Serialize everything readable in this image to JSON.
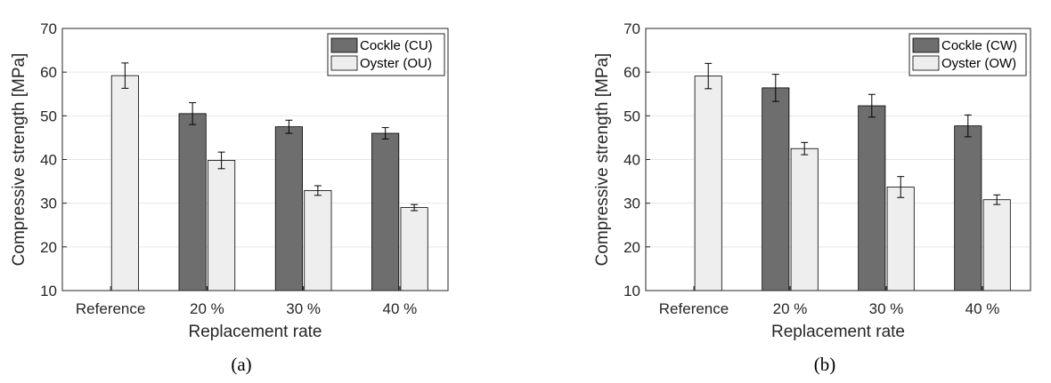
{
  "colors": {
    "cockle": "#6e6e6e",
    "oyster": "#eeeeee",
    "bar_edge": "#000000",
    "axis": "#262626",
    "grid": "#e6e6e6"
  },
  "chart_data": [
    {
      "type": "bar",
      "caption": "(a)",
      "xlabel": "Replacement rate",
      "ylabel": "Compressive strength [MPa]",
      "ylim": [
        10,
        70
      ],
      "yticks": [
        10,
        20,
        30,
        40,
        50,
        60,
        70
      ],
      "grid": "horizontal",
      "legend_position": "top-right",
      "categories": [
        "Reference",
        "20 %",
        "30 %",
        "40 %"
      ],
      "series": [
        {
          "name": "Cockle (CU)",
          "values": [
            null,
            50.5,
            47.5,
            46.0
          ],
          "errors": [
            null,
            2.5,
            1.5,
            1.3
          ]
        },
        {
          "name": "Oyster (OU)",
          "values": [
            59.2,
            39.8,
            32.9,
            29.0
          ],
          "errors": [
            2.9,
            1.9,
            1.1,
            0.7
          ]
        }
      ]
    },
    {
      "type": "bar",
      "caption": "(b)",
      "xlabel": "Replacement rate",
      "ylabel": "Compressive strength [MPa]",
      "ylim": [
        10,
        70
      ],
      "yticks": [
        10,
        20,
        30,
        40,
        50,
        60,
        70
      ],
      "grid": "horizontal",
      "legend_position": "top-right",
      "categories": [
        "Reference",
        "20 %",
        "30 %",
        "40 %"
      ],
      "series": [
        {
          "name": "Cockle (CW)",
          "values": [
            null,
            56.4,
            52.3,
            47.7
          ],
          "errors": [
            null,
            3.1,
            2.6,
            2.5
          ]
        },
        {
          "name": "Oyster (OW)",
          "values": [
            59.1,
            42.5,
            33.7,
            30.8
          ],
          "errors": [
            2.9,
            1.4,
            2.4,
            1.1
          ]
        }
      ]
    }
  ]
}
